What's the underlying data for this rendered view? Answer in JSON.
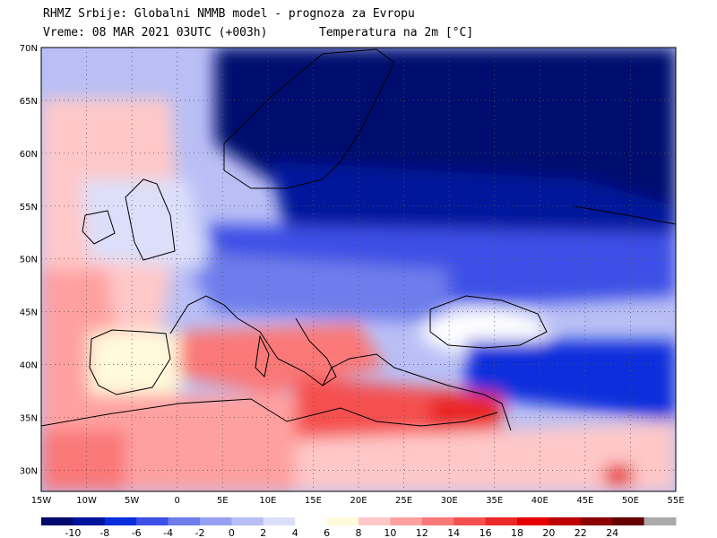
{
  "header": {
    "line1": "RHMZ Srbije: Globalni NMMB model - prognoza za Evropu",
    "vreme": "Vreme: 08 MAR 2021 03UTC (+003h)",
    "param": "Temperatura na 2m [°C]"
  },
  "map": {
    "lon_range": [
      -15,
      55
    ],
    "lat_range": [
      28,
      70
    ],
    "lat_labels": [
      "70N",
      "65N",
      "60N",
      "55N",
      "50N",
      "45N",
      "40N",
      "35N",
      "30N"
    ],
    "lon_labels": [
      "15W",
      "10W",
      "5W",
      "0",
      "5E",
      "10E",
      "15E",
      "20E",
      "25E",
      "30E",
      "35E",
      "40E",
      "45E",
      "50E",
      "55E"
    ]
  },
  "colorbar": {
    "labels": [
      "-10",
      "-8",
      "-6",
      "-4",
      "-2",
      "0",
      "2",
      "4",
      "6",
      "8",
      "10",
      "12",
      "14",
      "16",
      "18",
      "20",
      "22",
      "24"
    ],
    "colors": [
      "#000a6e",
      "#00149b",
      "#0a2ddc",
      "#3c50e6",
      "#6e7deb",
      "#969ff0",
      "#b9bff5",
      "#dcdffa",
      "#ffffff",
      "#fffadc",
      "#ffc8c8",
      "#ffa0a0",
      "#fa7878",
      "#f55050",
      "#eb2828",
      "#e60000",
      "#be0000",
      "#8c0000",
      "#640000",
      "#aaaaaa"
    ]
  }
}
